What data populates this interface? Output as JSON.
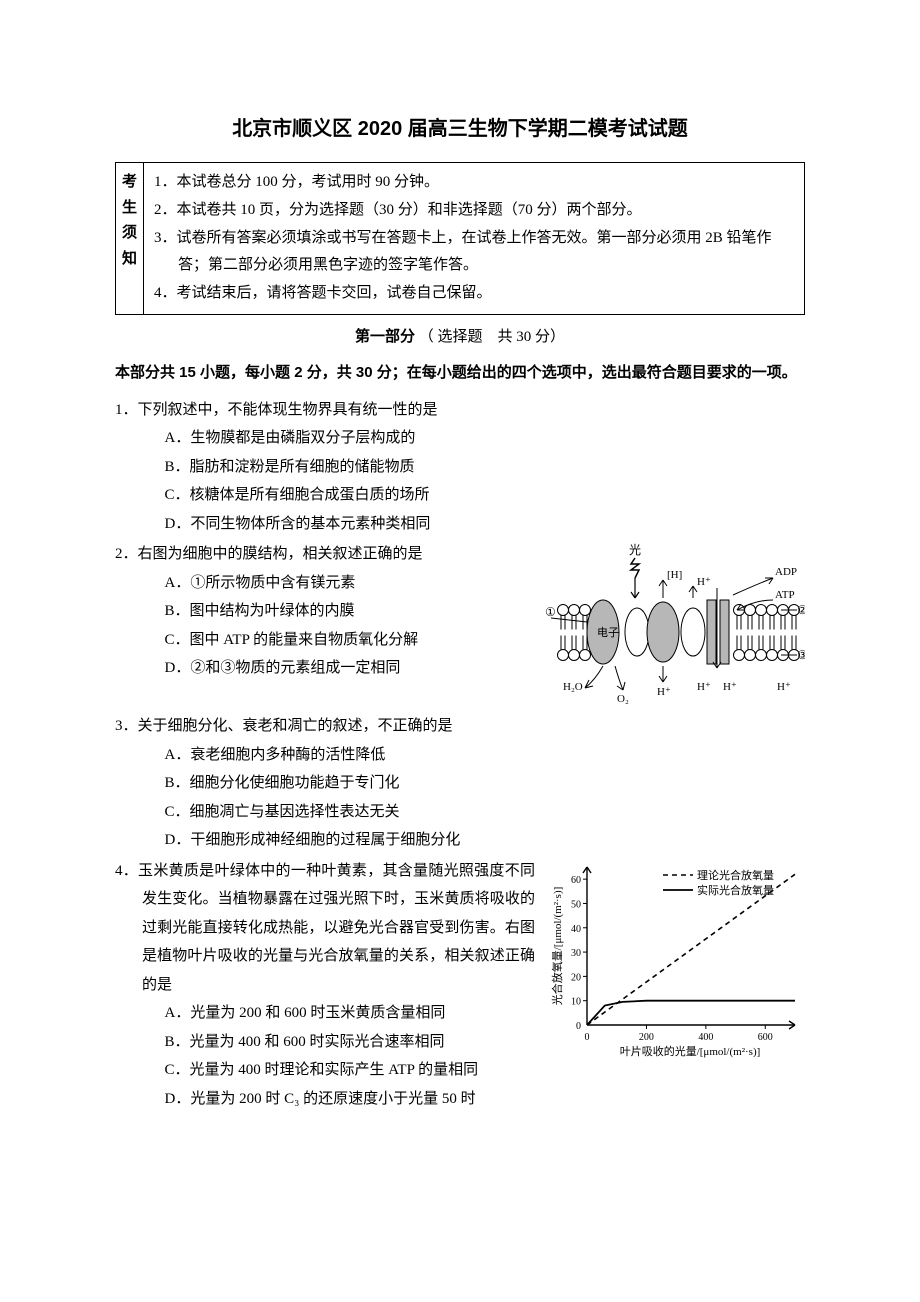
{
  "title": "北京市顺义区 2020 届高三生物下学期二模考试试题",
  "notice": {
    "label": "考生须知",
    "items": [
      "1．本试卷总分 100 分，考试用时 90 分钟。",
      "2．本试卷共 10 页，分为选择题（30 分）和非选择题（70 分）两个部分。",
      "3．试卷所有答案必须填涂或书写在答题卡上，在试卷上作答无效。第一部分必须用 2B 铅笔作答；第二部分必须用黑色字迹的签字笔作答。",
      "4．考试结束后，请将答题卡交回，试卷自己保留。"
    ]
  },
  "section1": {
    "head_bold": "第一部分",
    "head_rest": "（ 选择题　共 30 分）",
    "instr_bold": "本部分共 15 小题，每小题 2 分，共 30 分；在每小题给出的四个选项中，选出最符合题目要求的一项。"
  },
  "q1": {
    "stem": "1．下列叙述中，不能体现生物界具有统一性的是",
    "a": "A．生物膜都是由磷脂双分子层构成的",
    "b": "B．脂肪和淀粉是所有细胞的储能物质",
    "c": "C．核糖体是所有细胞合成蛋白质的场所",
    "d": "D．不同生物体所含的基本元素种类相同"
  },
  "q2": {
    "stem": "2．右图为细胞中的膜结构，相关叙述正确的是",
    "a": "A．①所示物质中含有镁元素",
    "b": "B．图中结构为叶绿体的内膜",
    "c": "C．图中 ATP 的能量来自物质氧化分解",
    "d": "D．②和③物质的元素组成一定相同"
  },
  "q3": {
    "stem": "3．关于细胞分化、衰老和凋亡的叙述，不正确的是",
    "a": "A．衰老细胞内多种酶的活性降低",
    "b": "B．细胞分化使细胞功能趋于专门化",
    "c": "C．细胞凋亡与基因选择性表达无关",
    "d": "D．干细胞形成神经细胞的过程属于细胞分化"
  },
  "q4": {
    "stem": "4．玉米黄质是叶绿体中的一种叶黄素，其含量随光照强度不同发生变化。当植物暴露在过强光照下时，玉米黄质将吸收的过剩光能直接转化成热能，以避免光合器官受到伤害。右图是植物叶片吸收的光量与光合放氧量的关系，相关叙述正确的是",
    "a": "A．光量为 200 和 600 时玉米黄质含量相同",
    "b": "B．光量为 400 和 600 时实际光合速率相同",
    "c": "C．光量为 400 时理论和实际产生 ATP 的量相同",
    "d": "D．光量为 200 时 C₃ 的还原速度小于光量 50 时"
  },
  "fig2": {
    "light": "光",
    "adp": "ADP",
    "atp": "ATP",
    "h": "[H]",
    "hp": "H⁺",
    "e": "电子",
    "h2o": "H₂O",
    "o2": "O₂",
    "n1": "①",
    "n2": "②",
    "n3": "③",
    "stroke": "#000000",
    "fill_gray": "#b7b7b7",
    "fill_white": "#ffffff"
  },
  "fig4": {
    "legend1": "理论光合放氧量",
    "legend2": "实际光合放氧量",
    "ylabel": "光合放氧量/[μmol/(m²·s)]",
    "xlabel": "叶片吸收的光量/[μmol/(m²·s)]",
    "yticks": [
      "0",
      "10",
      "20",
      "30",
      "40",
      "50",
      "60"
    ],
    "xticks": [
      "0",
      "200",
      "400",
      "600"
    ],
    "stroke": "#000000",
    "dash": "5,4",
    "xlim": [
      0,
      700
    ],
    "ylim": [
      0,
      65
    ],
    "theoretical": [
      [
        0,
        0
      ],
      [
        700,
        62
      ]
    ],
    "actual": [
      [
        0,
        0
      ],
      [
        60,
        8
      ],
      [
        120,
        9.5
      ],
      [
        200,
        10
      ],
      [
        700,
        10
      ]
    ]
  }
}
